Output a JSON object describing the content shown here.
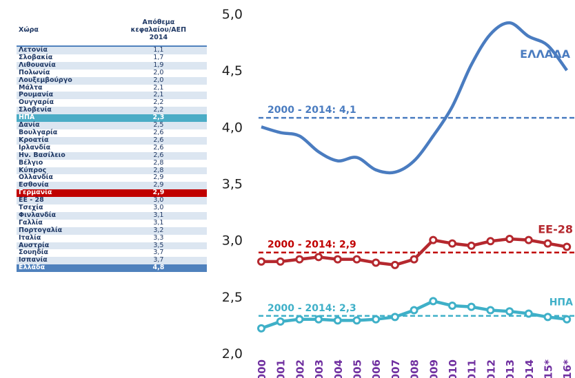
{
  "table": {
    "header": [
      "Χώρα",
      [
        "Απόθεμα",
        "κεφαλαίου/ΑΕΠ",
        "2014"
      ]
    ],
    "rows": [
      [
        "Λετονία",
        "1,1"
      ],
      [
        "Σλοβακία",
        "1,7"
      ],
      [
        "Λιθουανία",
        "1,9"
      ],
      [
        "Πολωνία",
        "2,0"
      ],
      [
        "Λουξεμβούργο",
        "2,0"
      ],
      [
        "Μάλτα",
        "2,1"
      ],
      [
        "Ρουμανία",
        "2,1"
      ],
      [
        "Ουγγαρία",
        "2,2"
      ],
      [
        "Σλοβενία",
        "2,2"
      ],
      [
        "ΗΠΑ",
        "2,3"
      ],
      [
        "Δανία",
        "2,5"
      ],
      [
        "Βουλγαρία",
        "2,6"
      ],
      [
        "Κροατία",
        "2,6"
      ],
      [
        "Ιρλανδία",
        "2,6"
      ],
      [
        "Ην. Βασίλειο",
        "2,6"
      ],
      [
        "Βέλγιο",
        "2,8"
      ],
      [
        "Κύπρος",
        "2,8"
      ],
      [
        "Ολλανδία",
        "2,9"
      ],
      [
        "Εσθονία",
        "2,9"
      ],
      [
        "Γερμανία",
        "2,9"
      ],
      [
        "ΕΕ - 28",
        "3,0"
      ],
      [
        "Τσεχία",
        "3,0"
      ],
      [
        "Φινλανδία",
        "3,1"
      ],
      [
        "Γαλλία",
        "3,1"
      ],
      [
        "Πορτογαλία",
        "3,2"
      ],
      [
        "Ιταλία",
        "3,3"
      ],
      [
        "Αυστρία",
        "3,5"
      ],
      [
        "Σουηδία",
        "3,7"
      ],
      [
        "Ισπανία",
        "3,7"
      ],
      [
        "Ελλάδα",
        "4,8"
      ]
    ]
  },
  "chart_data": {
    "type": "line",
    "categories": [
      "2000",
      "2001",
      "2002",
      "2003",
      "2004",
      "2005",
      "2006",
      "2007",
      "2008",
      "2009",
      "2010",
      "2011",
      "2012",
      "2013",
      "2014",
      "2015*",
      "2016*"
    ],
    "ylim": [
      2,
      5
    ],
    "yticks": [
      {
        "value": 2,
        "label": "2,0"
      },
      {
        "value": 2.5,
        "label": "2,5"
      },
      {
        "value": 3,
        "label": "3,0"
      },
      {
        "value": 3.5,
        "label": "3,5"
      },
      {
        "value": 4,
        "label": "4,0"
      },
      {
        "value": 4.5,
        "label": "4,5"
      },
      {
        "value": 5,
        "label": "5,0"
      }
    ],
    "series": [
      {
        "name": "ΕΛΛΑΔΑ",
        "color": "#4a7cc0",
        "markers": false,
        "values": [
          4.0,
          3.95,
          3.92,
          3.78,
          3.7,
          3.73,
          3.62,
          3.6,
          3.7,
          3.92,
          4.18,
          4.55,
          4.82,
          4.92,
          4.8,
          4.72,
          4.5
        ]
      },
      {
        "name": "ΕΕ-28",
        "color": "#b5282e",
        "markers": true,
        "values": [
          2.81,
          2.81,
          2.83,
          2.85,
          2.83,
          2.83,
          2.8,
          2.78,
          2.83,
          3.0,
          2.97,
          2.95,
          2.99,
          3.01,
          3.0,
          2.97,
          2.94
        ]
      },
      {
        "name": "ΗΠΑ",
        "color": "#3fb0c8",
        "markers": true,
        "values": [
          2.22,
          2.28,
          2.3,
          2.3,
          2.29,
          2.29,
          2.3,
          2.32,
          2.38,
          2.46,
          2.42,
          2.41,
          2.38,
          2.37,
          2.35,
          2.32,
          2.3
        ]
      }
    ],
    "reference_lines": [
      {
        "value": 4.08,
        "label": "2000 - 2014: 4,1",
        "color": "#4a7cc0"
      },
      {
        "value": 2.89,
        "label": "2000 - 2014: 2,9",
        "color": "#c00000"
      },
      {
        "value": 2.33,
        "label": "2000 - 2014: 2,3",
        "color": "#3fb0c8"
      }
    ]
  }
}
